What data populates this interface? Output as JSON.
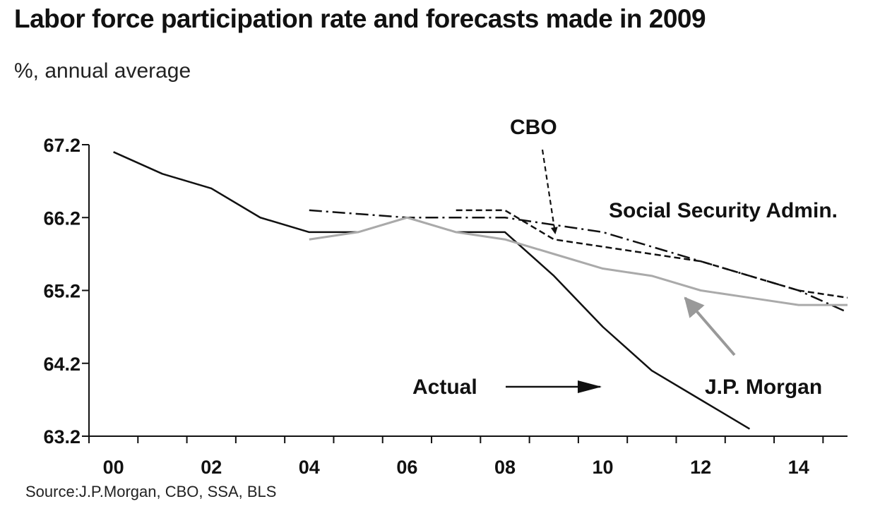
{
  "chart_data": {
    "type": "line",
    "title": "Labor force participation rate and forecasts made in 2009",
    "subtitle": "%, annual average",
    "source": "Source:J.P.Morgan,  CBO, SSA, BLS",
    "x_tick_labels": [
      "00",
      "02",
      "04",
      "06",
      "08",
      "10",
      "12",
      "14"
    ],
    "x_tick_values": [
      2000,
      2002,
      2004,
      2006,
      2008,
      2010,
      2012,
      2014
    ],
    "xlim": [
      1999.5,
      2015.0
    ],
    "y_tick_labels": [
      "67.2",
      "66.2",
      "65.2",
      "64.2",
      "63.2"
    ],
    "y_tick_values": [
      67.2,
      66.2,
      65.2,
      64.2,
      63.2
    ],
    "ylim": [
      63.2,
      67.2
    ],
    "grid": false,
    "series": [
      {
        "name": "Actual",
        "style": "solid",
        "color": "#111111",
        "x": [
          2000,
          2001,
          2002,
          2003,
          2004,
          2005,
          2006,
          2007,
          2008,
          2009,
          2010,
          2011,
          2012,
          2013
        ],
        "y": [
          67.1,
          66.8,
          66.6,
          66.2,
          66.0,
          66.0,
          66.2,
          66.0,
          66.0,
          65.4,
          64.7,
          64.1,
          63.7,
          63.3
        ]
      },
      {
        "name": "CBO",
        "style": "dashed",
        "color": "#111111",
        "x": [
          2007,
          2008,
          2009,
          2010,
          2011,
          2012,
          2013,
          2014,
          2015
        ],
        "y": [
          66.3,
          66.3,
          65.9,
          65.8,
          65.7,
          65.6,
          65.4,
          65.2,
          65.1
        ]
      },
      {
        "name": "Social Security Admin.",
        "style": "dash-dot",
        "color": "#111111",
        "x": [
          2004,
          2006,
          2008,
          2010,
          2012,
          2014,
          2015
        ],
        "y": [
          66.3,
          66.2,
          66.2,
          66.0,
          65.6,
          65.2,
          64.9
        ]
      },
      {
        "name": "J.P. Morgan",
        "style": "solid",
        "color": "#aaaaaa",
        "x": [
          2004,
          2005,
          2006,
          2007,
          2008,
          2009,
          2010,
          2011,
          2012,
          2013,
          2014,
          2015
        ],
        "y": [
          65.9,
          66.0,
          66.2,
          66.0,
          65.9,
          65.7,
          65.5,
          65.4,
          65.2,
          65.1,
          65.0,
          65.0
        ]
      }
    ],
    "annotations": [
      {
        "label": "CBO",
        "arrow": "down",
        "target_series": "CBO"
      },
      {
        "label": "Social Security Admin.",
        "arrow": "none",
        "target_series": "Social Security Admin."
      },
      {
        "label": "Actual",
        "arrow": "right",
        "target_series": "Actual"
      },
      {
        "label": "J.P. Morgan",
        "arrow": "up-left",
        "target_series": "J.P. Morgan"
      }
    ]
  }
}
